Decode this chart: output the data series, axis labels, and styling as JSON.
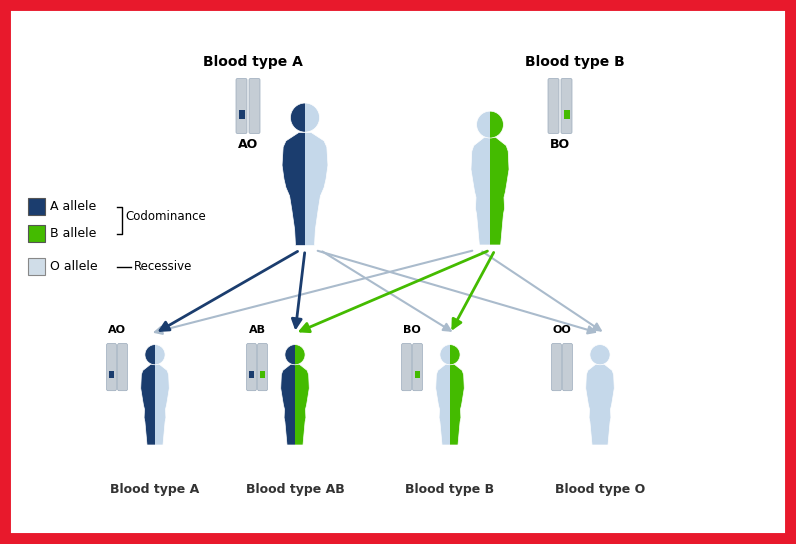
{
  "bg_color": "#ffffff",
  "border_color": "#e8192c",
  "border_width": 10,
  "dark_blue": "#1b3d6e",
  "light_green": "#44bb00",
  "light_blue_body": "#c5d8ea",
  "chr_fill": "#c5cdd5",
  "chr_edge": "#9aaabb",
  "parent_A_label": "Blood type A",
  "parent_B_label": "Blood type B",
  "parent_A_genotype": "AO",
  "parent_B_genotype": "BO",
  "children_labels": [
    "AO",
    "AB",
    "BO",
    "OO"
  ],
  "children_blood": [
    "Blood type A",
    "Blood type AB",
    "Blood type B",
    "Blood type O"
  ],
  "legend_A": "A allele",
  "legend_B": "B allele",
  "legend_O": "O allele",
  "codominance_label": "Codominance",
  "recessive_label": "Recessive",
  "arrow_blue": "#1b3d6e",
  "arrow_green": "#44bb00",
  "arrow_gray": "#aabbcc"
}
